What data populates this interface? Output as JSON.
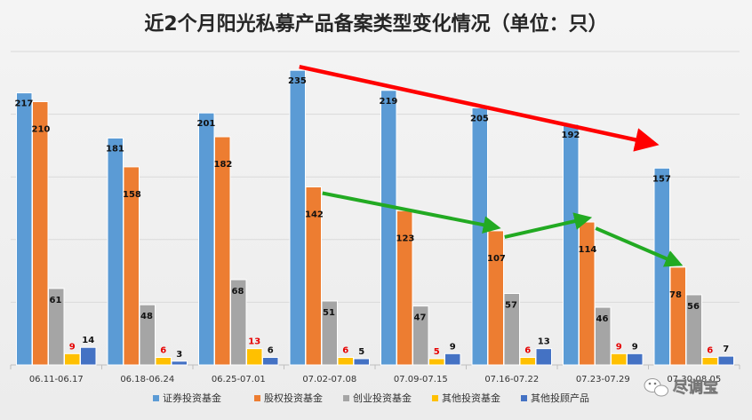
{
  "chart_data": {
    "type": "bar",
    "title": "近2个月阳光私募产品备案类型变化情况（单位：只）",
    "categories": [
      "06.11-06.17",
      "06.18-06.24",
      "06.25-07.01",
      "07.02-07.08",
      "07.09-07.15",
      "07.16-07.22",
      "07.23-07.29",
      "07.30-08.05"
    ],
    "series": [
      {
        "name": "证券投资基金",
        "color": "#5b9bd5",
        "values": [
          217,
          181,
          201,
          235,
          219,
          205,
          192,
          157
        ]
      },
      {
        "name": "股权投资基金",
        "color": "#ed7d31",
        "values": [
          210,
          158,
          182,
          142,
          123,
          107,
          114,
          78
        ]
      },
      {
        "name": "创业投资基金",
        "color": "#a5a5a5",
        "values": [
          61,
          48,
          68,
          51,
          47,
          57,
          46,
          56
        ]
      },
      {
        "name": "其他投资基金",
        "color": "#ffc000",
        "values": [
          9,
          6,
          13,
          6,
          5,
          6,
          9,
          6
        ]
      },
      {
        "name": "其他投顾产品",
        "color": "#4472c4",
        "values": [
          14,
          3,
          6,
          5,
          9,
          13,
          9,
          7
        ]
      }
    ],
    "red_label_series": "其他投资基金",
    "ylim": [
      0,
      250
    ],
    "grid": true,
    "legend": "bottom",
    "annotations": {
      "red_arrow": {
        "from": {
          "category": "07.02-07.08",
          "series": "证券投资基金"
        },
        "to": {
          "category": "07.30-08.05",
          "series": "证券投资基金"
        },
        "color": "#ff0000"
      },
      "green_arrows": [
        {
          "from": {
            "category": "07.02-07.08",
            "series": "股权投资基金"
          },
          "to": {
            "category": "07.16-07.22",
            "series": "股权投资基金"
          }
        },
        {
          "from": {
            "category": "07.16-07.22",
            "series": "股权投资基金"
          },
          "to": {
            "category": "07.23-07.29",
            "series": "股权投资基金"
          }
        },
        {
          "from": {
            "category": "07.23-07.29",
            "series": "股权投资基金"
          },
          "to": {
            "category": "07.30-08.05",
            "series": "股权投资基金"
          }
        }
      ],
      "green_color": "#22aa22"
    }
  },
  "watermark": {
    "text": "尽调宝",
    "icon": "wechat-icon"
  }
}
